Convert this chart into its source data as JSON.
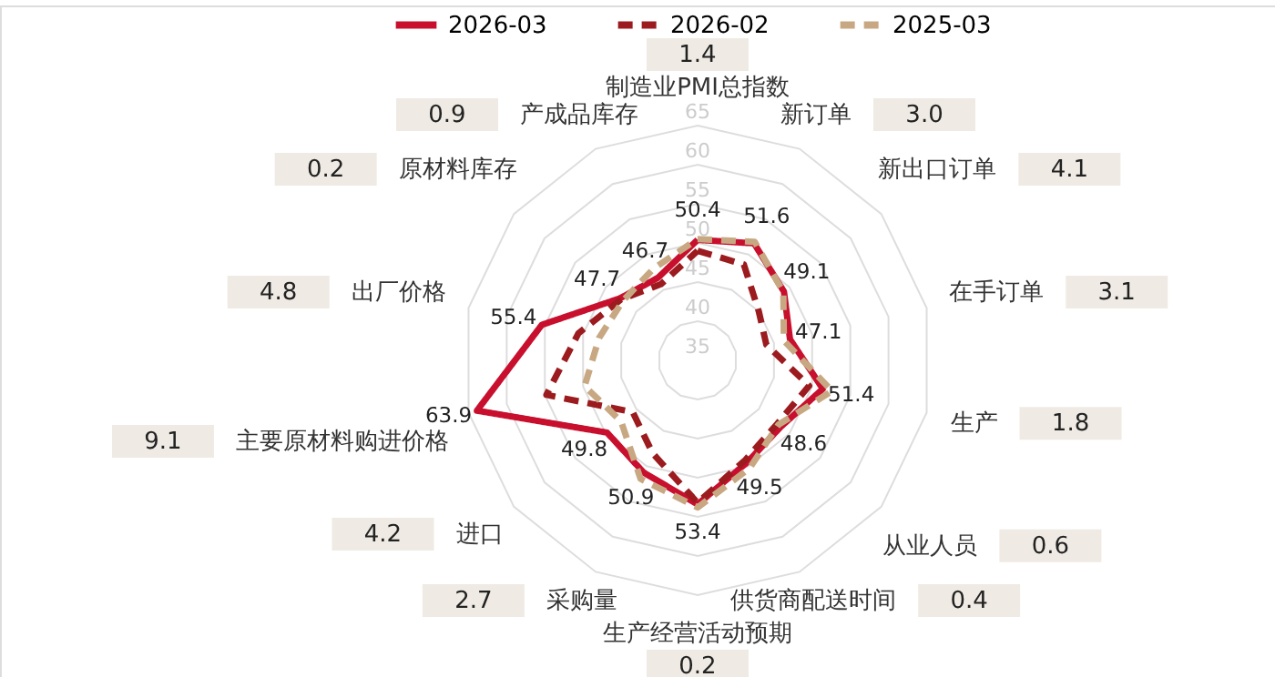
{
  "chart_data": {
    "type": "radar",
    "categories": [
      "制造业PMI总指数",
      "新订单",
      "新出口订单",
      "在手订单",
      "生产",
      "从业人员",
      "供货商配送时间",
      "生产经营活动预期",
      "采购量",
      "进口",
      "主要原材料购进价格",
      "出厂价格",
      "原材料库存",
      "产成品库存"
    ],
    "series": [
      {
        "name": "2026-03",
        "color": "#c8102e",
        "line_style": "solid",
        "values": [
          50.4,
          51.6,
          49.1,
          47.1,
          51.4,
          48.6,
          49.5,
          53.4,
          50.9,
          49.8,
          63.9,
          55.4,
          47.7,
          46.7
        ],
        "value_labels": [
          "50.4",
          "51.6",
          "49.1",
          "47.1",
          "51.4",
          "48.6",
          "49.5",
          "53.4",
          "50.9",
          "49.8",
          "63.9",
          "55.4",
          "47.7",
          "46.7"
        ]
      },
      {
        "name": "2026-02",
        "color": "#9b1b1e",
        "line_style": "dashed",
        "values": [
          49.0,
          48.6,
          45.0,
          44.0,
          49.6,
          48.0,
          49.1,
          53.2,
          48.2,
          45.6,
          54.8,
          50.6,
          47.5,
          45.8
        ]
      },
      {
        "name": "2025-03",
        "color": "#c8a882",
        "line_style": "dashed",
        "values": [
          50.5,
          51.8,
          49.0,
          46.3,
          52.6,
          48.2,
          50.3,
          53.8,
          51.8,
          47.5,
          49.8,
          47.9,
          47.2,
          48.0
        ]
      }
    ],
    "ylim": [
      35,
      65
    ],
    "yticks": [
      35,
      40,
      45,
      50,
      55,
      60,
      65
    ],
    "grid": true,
    "legend": "top",
    "marker": "none",
    "annotations": [
      "1.4",
      "3.0",
      "4.1",
      "3.1",
      "1.8",
      "0.6",
      "0.4",
      "0.2",
      "2.7",
      "4.2",
      "9.1",
      "4.8",
      "0.2",
      "0.9"
    ]
  }
}
